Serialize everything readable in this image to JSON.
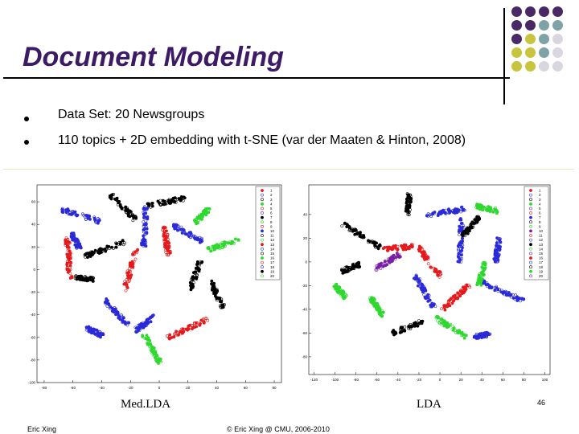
{
  "slide": {
    "title": "Document Modeling",
    "bullets": [
      "Data Set: 20 Newsgroups",
      "110 topics + 2D embedding with t-SNE (var der Maaten & Hinton, 2008)"
    ],
    "page_number": "46",
    "footer_left": "Eric Xing",
    "footer_center": "© Eric Xing @ CMU, 2006-2010"
  },
  "decoration": {
    "dot_grid": [
      [
        "#4a2866",
        "#4a2866",
        "#4a2866",
        "#4a2866"
      ],
      [
        "#4a2866",
        "#4a2866",
        "#7fa2a6",
        "#7fa2a6"
      ],
      [
        "#4a2866",
        "#c8c43e",
        "#7fa2a6",
        "#d9d6e0"
      ],
      [
        "#c8c43e",
        "#c8c43e",
        "#7fa2a6",
        "#d9d6e0"
      ],
      [
        "#c8c43e",
        "#c8c43e",
        "#d9d6e0",
        "#d9d6e0"
      ]
    ]
  },
  "chart_data": [
    {
      "type": "scatter",
      "title": "Med.LDA",
      "x_ticks": [
        "-80",
        "-60",
        "-40",
        "-20",
        "0",
        "20",
        "40",
        "60",
        "80"
      ],
      "y_ticks": [
        "60",
        "40",
        "20",
        "0",
        "-20",
        "-40",
        "-60",
        "-80",
        "-100"
      ],
      "xlim": [
        -85,
        85
      ],
      "ylim": [
        -100,
        75
      ],
      "legend": [
        "1",
        "2",
        "3",
        "4",
        "5",
        "6",
        "7",
        "8",
        "9",
        "10",
        "11",
        "12",
        "13",
        "14",
        "15",
        "16",
        "17",
        "18",
        "19",
        "20"
      ],
      "legend_position": "top-right",
      "series_colors": [
        "#e41a1c",
        "#2a2ad8",
        "#000000",
        "#2fd82f"
      ],
      "clusters": [
        {
          "color": "#2a2ad8",
          "x": -55,
          "y": 48
        },
        {
          "color": "#000000",
          "x": -25,
          "y": 55
        },
        {
          "color": "#000000",
          "x": 5,
          "y": 60
        },
        {
          "color": "#2fd82f",
          "x": 30,
          "y": 48
        },
        {
          "color": "#2a2ad8",
          "x": -58,
          "y": 25
        },
        {
          "color": "#e41a1c",
          "x": -63,
          "y": 10
        },
        {
          "color": "#000000",
          "x": -38,
          "y": 18
        },
        {
          "color": "#2a2ad8",
          "x": -10,
          "y": 38
        },
        {
          "color": "#e41a1c",
          "x": 5,
          "y": 25
        },
        {
          "color": "#2a2ad8",
          "x": 20,
          "y": 32
        },
        {
          "color": "#2fd82f",
          "x": 45,
          "y": 22
        },
        {
          "color": "#000000",
          "x": -52,
          "y": -8
        },
        {
          "color": "#e41a1c",
          "x": -20,
          "y": 0
        },
        {
          "color": "#000000",
          "x": 25,
          "y": -5
        },
        {
          "color": "#000000",
          "x": 40,
          "y": -22
        },
        {
          "color": "#2a2ad8",
          "x": -30,
          "y": -38
        },
        {
          "color": "#2a2ad8",
          "x": -10,
          "y": -48
        },
        {
          "color": "#e41a1c",
          "x": 20,
          "y": -52
        },
        {
          "color": "#2fd82f",
          "x": -5,
          "y": -70
        },
        {
          "color": "#2a2ad8",
          "x": -45,
          "y": -55
        }
      ]
    },
    {
      "type": "scatter",
      "title": "LDA",
      "x_ticks": [
        "-120",
        "-100",
        "-80",
        "-60",
        "-40",
        "-20",
        "0",
        "20",
        "40",
        "60",
        "80",
        "100"
      ],
      "y_ticks": [
        "40",
        "20",
        "0",
        "-20",
        "-40",
        "-60",
        "-80"
      ],
      "xlim": [
        -125,
        105
      ],
      "ylim": [
        -95,
        65
      ],
      "legend": [
        "1",
        "2",
        "3",
        "4",
        "5",
        "6",
        "7",
        "8",
        "9",
        "10",
        "11",
        "12",
        "13",
        "14",
        "15",
        "16",
        "17",
        "18",
        "19",
        "20"
      ],
      "legend_position": "top-right",
      "series_colors": [
        "#e41a1c",
        "#2a2ad8",
        "#000000",
        "#2fd82f",
        "#7a1fa8"
      ],
      "clusters": [
        {
          "color": "#000000",
          "x": -30,
          "y": 48
        },
        {
          "color": "#2a2ad8",
          "x": 5,
          "y": 42
        },
        {
          "color": "#2fd82f",
          "x": 45,
          "y": 45
        },
        {
          "color": "#000000",
          "x": -75,
          "y": 22
        },
        {
          "color": "#2a2ad8",
          "x": 20,
          "y": 18
        },
        {
          "color": "#e41a1c",
          "x": -40,
          "y": 12
        },
        {
          "color": "#2a2ad8",
          "x": 55,
          "y": 10
        },
        {
          "color": "#000000",
          "x": -85,
          "y": -5
        },
        {
          "color": "#e41a1c",
          "x": -10,
          "y": 0
        },
        {
          "color": "#2fd82f",
          "x": 40,
          "y": -10
        },
        {
          "color": "#2a2ad8",
          "x": 60,
          "y": -25
        },
        {
          "color": "#2fd82f",
          "x": -95,
          "y": -25
        },
        {
          "color": "#2fd82f",
          "x": -60,
          "y": -38
        },
        {
          "color": "#000000",
          "x": -30,
          "y": -55
        },
        {
          "color": "#2fd82f",
          "x": 10,
          "y": -55
        },
        {
          "color": "#2a2ad8",
          "x": 40,
          "y": -62
        },
        {
          "color": "#e41a1c",
          "x": 15,
          "y": -30
        },
        {
          "color": "#7a1fa8",
          "x": -50,
          "y": 0
        },
        {
          "color": "#2a2ad8",
          "x": -15,
          "y": -25
        },
        {
          "color": "#000000",
          "x": 30,
          "y": 30
        }
      ]
    }
  ]
}
